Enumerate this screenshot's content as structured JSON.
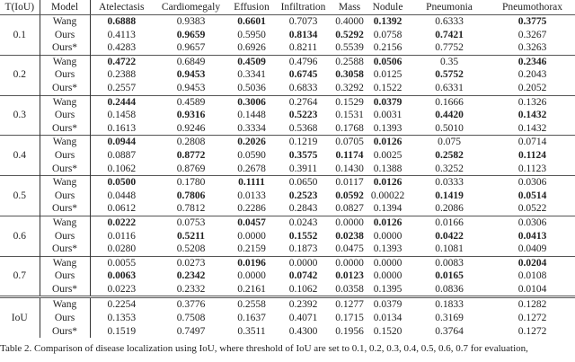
{
  "headers": [
    "T(IoU)",
    "Model",
    "Atelectasis",
    "Cardiomegaly",
    "Effusion",
    "Infiltration",
    "Mass",
    "Nodule",
    "Pneumonia",
    "Pneumothorax"
  ],
  "groups": [
    {
      "label": "0.1",
      "rows": [
        {
          "model": "Wang",
          "values": [
            "0.6888",
            "0.9383",
            "0.6601",
            "0.7073",
            "0.4000",
            "0.1392",
            "0.6333",
            "0.3775"
          ],
          "bold": [
            0,
            2,
            5,
            7
          ]
        },
        {
          "model": "Ours",
          "values": [
            "0.4113",
            "0.9659",
            "0.5950",
            "0.8134",
            "0.5292",
            "0.0758",
            "0.7421",
            "0.3267"
          ],
          "bold": [
            1,
            3,
            4,
            6
          ]
        },
        {
          "model": "Ours*",
          "values": [
            "0.4283",
            "0.9657",
            "0.6926",
            "0.8211",
            "0.5539",
            "0.2156",
            "0.7752",
            "0.3263"
          ],
          "bold": []
        }
      ]
    },
    {
      "label": "0.2",
      "rows": [
        {
          "model": "Wang",
          "values": [
            "0.4722",
            "0.6849",
            "0.4509",
            "0.4796",
            "0.2588",
            "0.0506",
            "0.35",
            "0.2346"
          ],
          "bold": [
            0,
            2,
            5,
            7
          ]
        },
        {
          "model": "Ours",
          "values": [
            "0.2388",
            "0.9453",
            "0.3341",
            "0.6745",
            "0.3058",
            "0.0125",
            "0.5752",
            "0.2043"
          ],
          "bold": [
            1,
            3,
            4,
            6
          ]
        },
        {
          "model": "Ours*",
          "values": [
            "0.2557",
            "0.9453",
            "0.5036",
            "0.6833",
            "0.3292",
            "0.1522",
            "0.6331",
            "0.2052"
          ],
          "bold": []
        }
      ]
    },
    {
      "label": "0.3",
      "rows": [
        {
          "model": "Wang",
          "values": [
            "0.2444",
            "0.4589",
            "0.3006",
            "0.2764",
            "0.1529",
            "0.0379",
            "0.1666",
            "0.1326"
          ],
          "bold": [
            0,
            2,
            5
          ]
        },
        {
          "model": "Ours",
          "values": [
            "0.1458",
            "0.9316",
            "0.1448",
            "0.5223",
            "0.1531",
            "0.0031",
            "0.4420",
            "0.1432"
          ],
          "bold": [
            1,
            3,
            6,
            7
          ]
        },
        {
          "model": "Ours*",
          "values": [
            "0.1613",
            "0.9246",
            "0.3334",
            "0.5368",
            "0.1768",
            "0.1393",
            "0.5010",
            "0.1432"
          ],
          "bold": []
        }
      ]
    },
    {
      "label": "0.4",
      "rows": [
        {
          "model": "Wang",
          "values": [
            "0.0944",
            "0.2808",
            "0.2026",
            "0.1219",
            "0.0705",
            "0.0126",
            "0.075",
            "0.0714"
          ],
          "bold": [
            0,
            2,
            5
          ]
        },
        {
          "model": "Ours",
          "values": [
            "0.0887",
            "0.8772",
            "0.0590",
            "0.3575",
            "0.1174",
            "0.0025",
            "0.2582",
            "0.1124"
          ],
          "bold": [
            1,
            3,
            4,
            6,
            7
          ]
        },
        {
          "model": "Ours*",
          "values": [
            "0.1062",
            "0.8769",
            "0.2678",
            "0.3911",
            "0.1430",
            "0.1388",
            "0.3252",
            "0.1123"
          ],
          "bold": []
        }
      ]
    },
    {
      "label": "0.5",
      "rows": [
        {
          "model": "Wang",
          "values": [
            "0.0500",
            "0.1780",
            "0.1111",
            "0.0650",
            "0.0117",
            "0.0126",
            "0.0333",
            "0.0306"
          ],
          "bold": [
            0,
            2,
            5
          ]
        },
        {
          "model": "Ours",
          "values": [
            "0.0448",
            "0.7806",
            "0.0133",
            "0.2523",
            "0.0592",
            "0.00022",
            "0.1419",
            "0.0514"
          ],
          "bold": [
            1,
            3,
            4,
            6,
            7
          ]
        },
        {
          "model": "Ours*",
          "values": [
            "0.0612",
            "0.7812",
            "0.2286",
            "0.2843",
            "0.0827",
            "0.1394",
            "0.2086",
            "0.0522"
          ],
          "bold": []
        }
      ]
    },
    {
      "label": "0.6",
      "rows": [
        {
          "model": "Wang",
          "values": [
            "0.0222",
            "0.0753",
            "0.0457",
            "0.0243",
            "0.0000",
            "0.0126",
            "0.0166",
            "0.0306"
          ],
          "bold": [
            0,
            2,
            5
          ]
        },
        {
          "model": "Ours",
          "values": [
            "0.0116",
            "0.5211",
            "0.0000",
            "0.1552",
            "0.0238",
            "0.0000",
            "0.0422",
            "0.0413"
          ],
          "bold": [
            1,
            3,
            4,
            6,
            7
          ]
        },
        {
          "model": "Ours*",
          "values": [
            "0.0280",
            "0.5208",
            "0.2159",
            "0.1873",
            "0.0475",
            "0.1393",
            "0.1081",
            "0.0409"
          ],
          "bold": []
        }
      ]
    },
    {
      "label": "0.7",
      "rows": [
        {
          "model": "Wang",
          "values": [
            "0.0055",
            "0.0273",
            "0.0196",
            "0.0000",
            "0.0000",
            "0.0000",
            "0.0083",
            "0.0204"
          ],
          "bold": [
            2,
            7
          ]
        },
        {
          "model": "Ours",
          "values": [
            "0.0063",
            "0.2342",
            "0.0000",
            "0.0742",
            "0.0123",
            "0.0000",
            "0.0165",
            "0.0108"
          ],
          "bold": [
            0,
            1,
            3,
            4,
            6
          ]
        },
        {
          "model": "Ours*",
          "values": [
            "0.0223",
            "0.2332",
            "0.2161",
            "0.1062",
            "0.0358",
            "0.1395",
            "0.0836",
            "0.0104"
          ],
          "bold": []
        }
      ]
    },
    {
      "label": "IoU",
      "double": true,
      "rows": [
        {
          "model": "Wang",
          "values": [
            "0.2254",
            "0.3776",
            "0.2558",
            "0.2392",
            "0.1277",
            "0.0379",
            "0.1833",
            "0.1282"
          ],
          "bold": []
        },
        {
          "model": "Ours",
          "values": [
            "0.1353",
            "0.7508",
            "0.1637",
            "0.4071",
            "0.1715",
            "0.0134",
            "0.3169",
            "0.1272"
          ],
          "bold": []
        },
        {
          "model": "Ours*",
          "values": [
            "0.1519",
            "0.7497",
            "0.3511",
            "0.4300",
            "0.1956",
            "0.1520",
            "0.3764",
            "0.1272"
          ],
          "bold": []
        }
      ]
    }
  ],
  "caption": "Table 2. Comparison of disease localization using IoU, where threshold of IoU are set to 0.1, 0.2, 0.3, 0.4, 0.5, 0.6, 0.7 for evaluation,"
}
